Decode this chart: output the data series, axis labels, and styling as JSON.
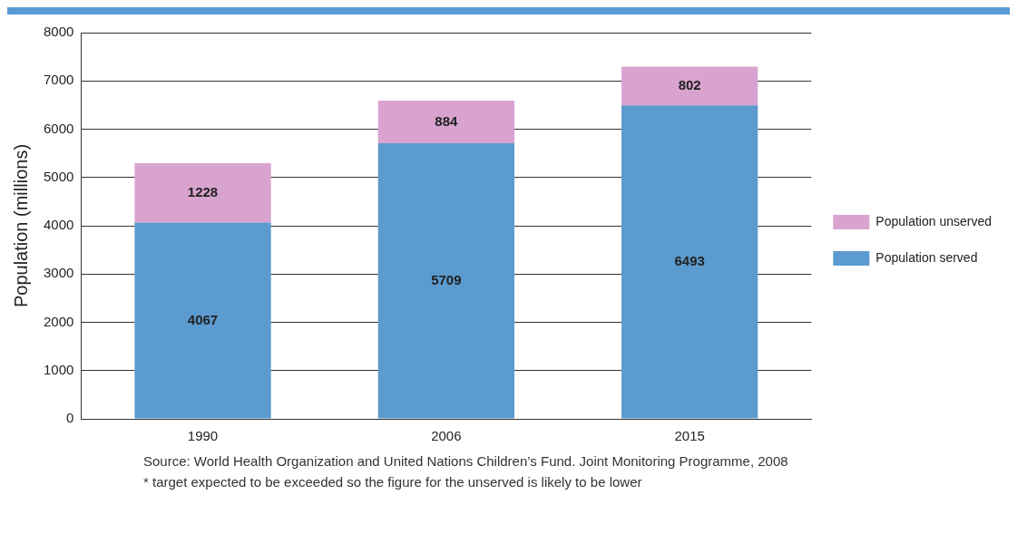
{
  "chart_data": {
    "type": "bar",
    "stacked": true,
    "ylabel": "Population (millions)",
    "categories": [
      "1990",
      "2006",
      "2015"
    ],
    "series": [
      {
        "name": "Population served",
        "color": "#5b9bcf",
        "values": [
          4067,
          5709,
          6493
        ]
      },
      {
        "name": "Population unserved",
        "color": "#d9a3cf",
        "values": [
          1228,
          884,
          802
        ]
      }
    ],
    "ylim": [
      0,
      8000
    ],
    "yticks": [
      0,
      1000,
      2000,
      3000,
      4000,
      5000,
      6000,
      7000,
      8000
    ],
    "grid": "y",
    "legend": "right",
    "data_labels": true,
    "annotations": [
      "Source: World Health Organization and United Nations Children’s Fund. Joint Monitoring Programme, 2008",
      "* target expected to be exceeded so the figure for the unserved is likely to be lower"
    ]
  }
}
